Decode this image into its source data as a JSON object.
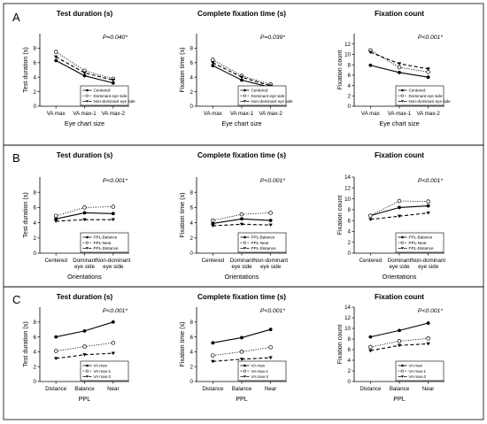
{
  "panels": [
    {
      "letter": "A",
      "charts": [
        {
          "type": "line",
          "title": "Test duration (s)",
          "ylabel": "Test duration (s)",
          "xlabel": "Eye chart size",
          "pvalue": "P=0.040*",
          "ylim": [
            0,
            10
          ],
          "yticks": [
            0,
            2,
            4,
            6,
            8
          ],
          "categories": [
            "VA max",
            "VA max-1",
            "VA max-2"
          ],
          "legend": "bottom-right",
          "series": [
            {
              "name": "Centered",
              "style": "solid",
              "marker": "filled-circle",
              "values": [
                6.3,
                4.2,
                3.2
              ]
            },
            {
              "name": "Dominant eye side",
              "style": "dotted",
              "marker": "open-circle",
              "values": [
                7.5,
                4.9,
                3.8
              ]
            },
            {
              "name": "Non-dominant eye side",
              "style": "dashed",
              "marker": "filled-triangle",
              "values": [
                6.8,
                4.6,
                3.6
              ]
            }
          ]
        },
        {
          "type": "line",
          "title": "Complete fixation time (s)",
          "ylabel": "Fixation time (s)",
          "xlabel": "Eye chart size",
          "pvalue": "P=0.039*",
          "ylim": [
            0,
            10
          ],
          "yticks": [
            0,
            2,
            4,
            6,
            8
          ],
          "categories": [
            "VA max",
            "VA max-1",
            "VA max-2"
          ],
          "legend": "bottom-right",
          "series": [
            {
              "name": "Centered",
              "style": "solid",
              "marker": "filled-circle",
              "values": [
                5.6,
                3.6,
                2.6
              ]
            },
            {
              "name": "Dominant eye side",
              "style": "dotted",
              "marker": "open-circle",
              "values": [
                6.4,
                4.2,
                3.0
              ]
            },
            {
              "name": "Non-dominant eye side",
              "style": "dashed",
              "marker": "filled-triangle",
              "values": [
                6.0,
                4.0,
                2.8
              ]
            }
          ]
        },
        {
          "type": "line",
          "title": "Fixation count",
          "ylabel": "Fixation count",
          "xlabel": "Eye chart size",
          "pvalue": "P<0.001*",
          "ylim": [
            0,
            14
          ],
          "yticks": [
            0,
            2,
            4,
            6,
            8,
            10,
            12
          ],
          "categories": [
            "VA max",
            "VA max-1",
            "VA max-2"
          ],
          "legend": "bottom-right",
          "series": [
            {
              "name": "Centered",
              "style": "solid",
              "marker": "filled-circle",
              "values": [
                7.9,
                6.5,
                5.6
              ]
            },
            {
              "name": "Dominant eye side",
              "style": "dotted",
              "marker": "open-circle",
              "values": [
                10.8,
                7.5,
                6.6
              ]
            },
            {
              "name": "Non-dominant eye side",
              "style": "dashed",
              "marker": "filled-triangle",
              "values": [
                10.4,
                8.2,
                7.2
              ]
            }
          ]
        }
      ]
    },
    {
      "letter": "B",
      "charts": [
        {
          "type": "line",
          "title": "Test duration (s)",
          "ylabel": "Test duration (s)",
          "xlabel": "Orientations",
          "pvalue": "P<0.001*",
          "ylim": [
            0,
            10
          ],
          "yticks": [
            0,
            2,
            4,
            6,
            8
          ],
          "categories": [
            "Centered",
            "Dominant|eye side",
            "Non-dominant|eye side"
          ],
          "legend": "bottom-right",
          "series": [
            {
              "name": "PPL-Balance",
              "style": "solid",
              "marker": "filled-circle",
              "values": [
                4.5,
                5.3,
                5.2
              ]
            },
            {
              "name": "PPL-Near",
              "style": "dotted",
              "marker": "open-circle",
              "values": [
                4.9,
                6.0,
                6.1
              ]
            },
            {
              "name": "PPL-Distance",
              "style": "dashed",
              "marker": "filled-triangle",
              "values": [
                4.2,
                4.4,
                4.4
              ]
            }
          ]
        },
        {
          "type": "line",
          "title": "Complete fixation time (s)",
          "ylabel": "Fixation time (s)",
          "xlabel": "Orientations",
          "pvalue": "P<0.001*",
          "ylim": [
            0,
            10
          ],
          "yticks": [
            0,
            2,
            4,
            6,
            8
          ],
          "categories": [
            "Centered",
            "Dominant|eye side",
            "Non-dominant|eye side"
          ],
          "legend": "bottom-right",
          "series": [
            {
              "name": "PPL-Balance",
              "style": "solid",
              "marker": "filled-circle",
              "values": [
                3.9,
                4.5,
                4.3
              ]
            },
            {
              "name": "PPL-Near",
              "style": "dotted",
              "marker": "open-circle",
              "values": [
                4.3,
                5.1,
                5.3
              ]
            },
            {
              "name": "PPL-Distance",
              "style": "dashed",
              "marker": "filled-triangle",
              "values": [
                3.6,
                3.8,
                3.7
              ]
            }
          ]
        },
        {
          "type": "line",
          "title": "Fixation count",
          "ylabel": "Fixation count",
          "xlabel": "Orientations",
          "pvalue": "P<0.001*",
          "ylim": [
            0,
            14
          ],
          "yticks": [
            0,
            2,
            4,
            6,
            8,
            10,
            12,
            14
          ],
          "categories": [
            "Centered",
            "Dominant|eye side",
            "Non-dominant|eye side"
          ],
          "legend": "bottom-right",
          "series": [
            {
              "name": "PPL-Balance",
              "style": "solid",
              "marker": "filled-circle",
              "values": [
                6.9,
                8.4,
                8.7
              ]
            },
            {
              "name": "PPL-Near",
              "style": "dotted",
              "marker": "open-circle",
              "values": [
                6.9,
                9.6,
                9.5
              ]
            },
            {
              "name": "PPL-Distance",
              "style": "dashed",
              "marker": "filled-triangle",
              "values": [
                6.2,
                6.8,
                7.4
              ]
            }
          ]
        }
      ]
    },
    {
      "letter": "C",
      "charts": [
        {
          "type": "line",
          "title": "Test duration (s)",
          "ylabel": "Test duration (s)",
          "xlabel": "PPL",
          "pvalue": "P<0.001*",
          "ylim": [
            0,
            10
          ],
          "yticks": [
            0,
            2,
            4,
            6,
            8
          ],
          "categories": [
            "Distance",
            "Balance",
            "Near"
          ],
          "legend": "bottom-right",
          "series": [
            {
              "name": "VA max",
              "style": "solid",
              "marker": "filled-circle",
              "values": [
                6.0,
                6.8,
                8.0
              ]
            },
            {
              "name": "VA max-1",
              "style": "dotted",
              "marker": "open-circle",
              "values": [
                4.1,
                4.7,
                5.2
              ]
            },
            {
              "name": "VA max-2",
              "style": "dashed",
              "marker": "filled-triangle",
              "values": [
                3.1,
                3.6,
                3.8
              ]
            }
          ]
        },
        {
          "type": "line",
          "title": "Complete fixation time (s)",
          "ylabel": "Fixation time (s)",
          "xlabel": "PPL",
          "pvalue": "P<0.001*",
          "ylim": [
            0,
            10
          ],
          "yticks": [
            0,
            2,
            4,
            6,
            8
          ],
          "categories": [
            "Distance",
            "Balance",
            "Near"
          ],
          "legend": "bottom-right",
          "series": [
            {
              "name": "VA max",
              "style": "solid",
              "marker": "filled-circle",
              "values": [
                5.2,
                5.9,
                7.0
              ]
            },
            {
              "name": "VA max-1",
              "style": "dotted",
              "marker": "open-circle",
              "values": [
                3.5,
                4.0,
                4.6
              ]
            },
            {
              "name": "VA max-2",
              "style": "dashed",
              "marker": "filled-triangle",
              "values": [
                2.7,
                3.0,
                3.2
              ]
            }
          ]
        },
        {
          "type": "line",
          "title": "Fixation count",
          "ylabel": "Fixation count",
          "xlabel": "PPL",
          "pvalue": "P<0.001*",
          "ylim": [
            0,
            14
          ],
          "yticks": [
            0,
            2,
            4,
            6,
            8,
            10,
            12,
            14
          ],
          "categories": [
            "Distance",
            "Balance",
            "Near"
          ],
          "legend": "bottom-right",
          "series": [
            {
              "name": "VA max",
              "style": "solid",
              "marker": "filled-circle",
              "values": [
                8.4,
                9.6,
                11.0
              ]
            },
            {
              "name": "VA max-1",
              "style": "dotted",
              "marker": "open-circle",
              "values": [
                6.5,
                7.6,
                8.1
              ]
            },
            {
              "name": "VA max-2",
              "style": "dashed",
              "marker": "filled-triangle",
              "values": [
                5.8,
                6.8,
                7.1
              ]
            }
          ]
        }
      ]
    }
  ]
}
